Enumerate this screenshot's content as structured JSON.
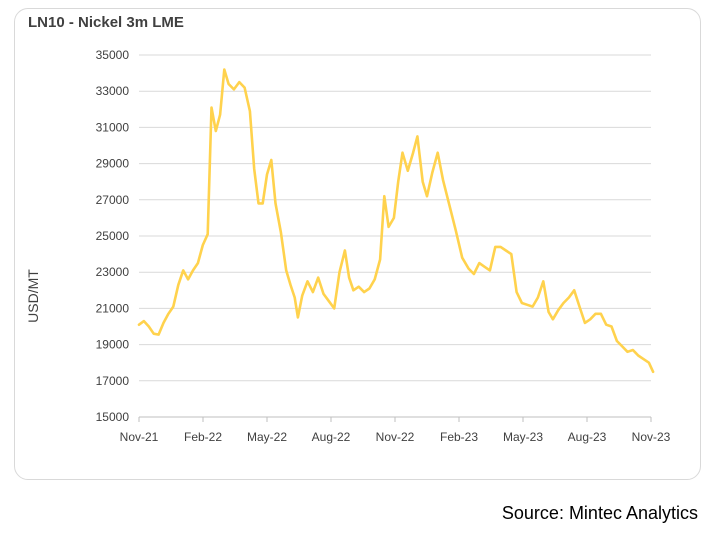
{
  "header": {
    "title": "LN10 - Nickel 3m LME"
  },
  "footer": {
    "source": "Source: Mintec Analytics"
  },
  "colors": {
    "line": "#FFD24D",
    "grid": "#D9D9D9",
    "axis": "#BFBFBF",
    "text": "#404040"
  },
  "chart_data": {
    "type": "line",
    "title": "LN10 - Nickel 3m LME",
    "xlabel": "",
    "ylabel": "USD/MT",
    "ylim": [
      15000,
      35000
    ],
    "yticks": [
      15000,
      17000,
      19000,
      21000,
      23000,
      25000,
      27000,
      29000,
      31000,
      33000,
      35000
    ],
    "xlim": [
      0,
      24
    ],
    "xticks": [
      {
        "pos": 0,
        "label": "Nov-21"
      },
      {
        "pos": 3,
        "label": "Feb-22"
      },
      {
        "pos": 6,
        "label": "May-22"
      },
      {
        "pos": 9,
        "label": "Aug-22"
      },
      {
        "pos": 12,
        "label": "Nov-22"
      },
      {
        "pos": 15,
        "label": "Feb-23"
      },
      {
        "pos": 18,
        "label": "May-23"
      },
      {
        "pos": 21,
        "label": "Aug-23"
      },
      {
        "pos": 24,
        "label": "Nov-23"
      }
    ],
    "grid": "horizontal",
    "series": [
      {
        "color": "#FFD24D",
        "points": [
          [
            0.0,
            20100
          ],
          [
            0.23,
            20300
          ],
          [
            0.46,
            20000
          ],
          [
            0.69,
            19600
          ],
          [
            0.92,
            19550
          ],
          [
            1.15,
            20200
          ],
          [
            1.38,
            20700
          ],
          [
            1.61,
            21100
          ],
          [
            1.84,
            22300
          ],
          [
            2.07,
            23100
          ],
          [
            2.3,
            22600
          ],
          [
            2.53,
            23100
          ],
          [
            2.76,
            23500
          ],
          [
            2.99,
            24500
          ],
          [
            3.22,
            25100
          ],
          [
            3.4,
            32100
          ],
          [
            3.6,
            30800
          ],
          [
            3.8,
            31700
          ],
          [
            4.0,
            34200
          ],
          [
            4.2,
            33400
          ],
          [
            4.45,
            33100
          ],
          [
            4.7,
            33500
          ],
          [
            4.95,
            33200
          ],
          [
            5.2,
            31900
          ],
          [
            5.4,
            28700
          ],
          [
            5.6,
            26800
          ],
          [
            5.8,
            26800
          ],
          [
            6.0,
            28400
          ],
          [
            6.2,
            29200
          ],
          [
            6.4,
            26800
          ],
          [
            6.65,
            25200
          ],
          [
            6.9,
            23100
          ],
          [
            7.1,
            22300
          ],
          [
            7.3,
            21600
          ],
          [
            7.45,
            20500
          ],
          [
            7.65,
            21700
          ],
          [
            7.9,
            22500
          ],
          [
            8.15,
            21900
          ],
          [
            8.4,
            22700
          ],
          [
            8.65,
            21800
          ],
          [
            8.9,
            21400
          ],
          [
            9.15,
            21000
          ],
          [
            9.4,
            23000
          ],
          [
            9.65,
            24200
          ],
          [
            9.85,
            22700
          ],
          [
            10.05,
            22000
          ],
          [
            10.3,
            22200
          ],
          [
            10.55,
            21900
          ],
          [
            10.8,
            22100
          ],
          [
            11.05,
            22600
          ],
          [
            11.3,
            23700
          ],
          [
            11.5,
            27200
          ],
          [
            11.7,
            25500
          ],
          [
            11.95,
            26000
          ],
          [
            12.15,
            28000
          ],
          [
            12.35,
            29600
          ],
          [
            12.6,
            28600
          ],
          [
            12.85,
            29600
          ],
          [
            13.05,
            30500
          ],
          [
            13.3,
            28000
          ],
          [
            13.5,
            27200
          ],
          [
            13.75,
            28500
          ],
          [
            14.0,
            29600
          ],
          [
            14.25,
            28100
          ],
          [
            14.55,
            26700
          ],
          [
            14.85,
            25300
          ],
          [
            15.15,
            23800
          ],
          [
            15.45,
            23200
          ],
          [
            15.7,
            22900
          ],
          [
            15.95,
            23500
          ],
          [
            16.2,
            23300
          ],
          [
            16.45,
            23100
          ],
          [
            16.7,
            24400
          ],
          [
            16.95,
            24400
          ],
          [
            17.2,
            24200
          ],
          [
            17.45,
            24000
          ],
          [
            17.7,
            21900
          ],
          [
            17.95,
            21300
          ],
          [
            18.2,
            21200
          ],
          [
            18.45,
            21100
          ],
          [
            18.7,
            21600
          ],
          [
            18.95,
            22500
          ],
          [
            19.2,
            20800
          ],
          [
            19.4,
            20400
          ],
          [
            19.65,
            20900
          ],
          [
            19.9,
            21300
          ],
          [
            20.15,
            21600
          ],
          [
            20.4,
            22000
          ],
          [
            20.65,
            21100
          ],
          [
            20.9,
            20200
          ],
          [
            21.15,
            20400
          ],
          [
            21.4,
            20700
          ],
          [
            21.65,
            20700
          ],
          [
            21.9,
            20100
          ],
          [
            22.15,
            20000
          ],
          [
            22.4,
            19200
          ],
          [
            22.65,
            18900
          ],
          [
            22.9,
            18600
          ],
          [
            23.15,
            18700
          ],
          [
            23.4,
            18400
          ],
          [
            23.65,
            18200
          ],
          [
            23.9,
            18000
          ],
          [
            24.1,
            17500
          ]
        ]
      }
    ]
  }
}
